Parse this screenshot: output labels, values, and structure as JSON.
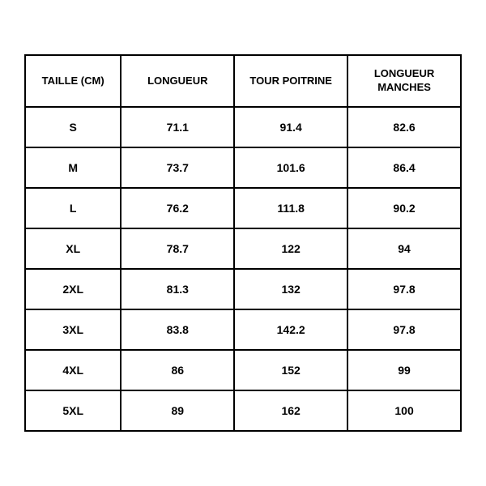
{
  "table": {
    "type": "table",
    "background_color": "#ffffff",
    "border_color": "#000000",
    "border_width": 2,
    "text_color": "#000000",
    "font_family": "Arial",
    "header_fontsize": 13,
    "cell_fontsize": 14,
    "font_weight": 700,
    "columns": [
      {
        "label": "TAILLE (CM)",
        "width_pct": 22,
        "align": "center"
      },
      {
        "label": "LONGUEUR",
        "width_pct": 26,
        "align": "center"
      },
      {
        "label": "TOUR POITRINE",
        "width_pct": 26,
        "align": "center"
      },
      {
        "label": "LONGUEUR MANCHES",
        "width_pct": 26,
        "align": "center"
      }
    ],
    "rows": [
      [
        "S",
        "71.1",
        "91.4",
        "82.6"
      ],
      [
        "M",
        "73.7",
        "101.6",
        "86.4"
      ],
      [
        "L",
        "76.2",
        "111.8",
        "90.2"
      ],
      [
        "XL",
        "78.7",
        "122",
        "94"
      ],
      [
        "2XL",
        "81.3",
        "132",
        "97.8"
      ],
      [
        "3XL",
        "83.8",
        "142.2",
        "97.8"
      ],
      [
        "4XL",
        "86",
        "152",
        "99"
      ],
      [
        "5XL",
        "89",
        "162",
        "100"
      ]
    ]
  }
}
